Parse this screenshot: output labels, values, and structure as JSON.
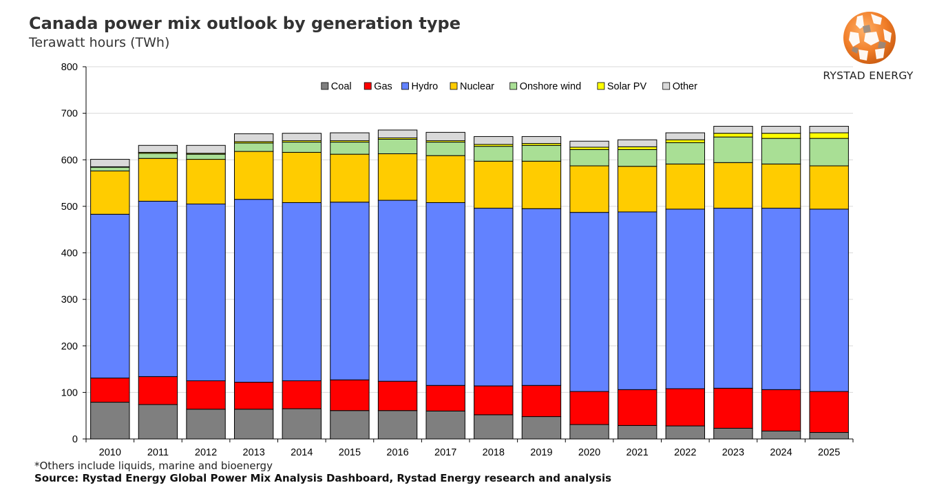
{
  "header": {
    "title": "Canada power mix outlook by generation type",
    "subtitle": "Terawatt hours (TWh)"
  },
  "logo": {
    "text": "RYSTAD ENERGY",
    "icon": "globe-logo-icon",
    "color": "#f07d28"
  },
  "footer": {
    "footnote": "*Others include liquids, marine and bioenergy",
    "source": "Source: Rystad Energy Global Power Mix Analysis  Dashboard, Rystad Energy research and analysis"
  },
  "chart_data": {
    "type": "bar",
    "stacked": true,
    "title": "Canada power mix outlook by generation type",
    "subtitle": "Terawatt hours (TWh)",
    "categories": [
      "2010",
      "2011",
      "2012",
      "2013",
      "2014",
      "2015",
      "2016",
      "2017",
      "2018",
      "2019",
      "2020",
      "2021",
      "2022",
      "2023",
      "2024",
      "2025"
    ],
    "ylim": [
      0,
      800
    ],
    "yticks": [
      0,
      100,
      200,
      300,
      400,
      500,
      600,
      700,
      800
    ],
    "grid": true,
    "legend": "top-center",
    "series": [
      {
        "name": "Coal",
        "color": "#7f7f7f",
        "values": [
          79,
          74,
          64,
          64,
          65,
          61,
          61,
          60,
          52,
          48,
          31,
          29,
          28,
          23,
          17,
          14
        ]
      },
      {
        "name": "Gas",
        "color": "#ff0000",
        "values": [
          52,
          60,
          61,
          58,
          60,
          66,
          63,
          55,
          62,
          67,
          71,
          77,
          80,
          86,
          89,
          88
        ]
      },
      {
        "name": "Hydro",
        "color": "#6282ff",
        "values": [
          352,
          377,
          380,
          393,
          383,
          382,
          389,
          393,
          382,
          380,
          385,
          382,
          386,
          387,
          390,
          392
        ]
      },
      {
        "name": "Nuclear",
        "color": "#ffcc00",
        "values": [
          93,
          92,
          96,
          103,
          108,
          103,
          100,
          101,
          101,
          102,
          100,
          98,
          97,
          98,
          95,
          93
        ]
      },
      {
        "name": "Onshore wind",
        "color": "#a9df95",
        "values": [
          8,
          11,
          11,
          18,
          22,
          26,
          31,
          29,
          32,
          34,
          35,
          36,
          46,
          55,
          55,
          59
        ]
      },
      {
        "name": "Solar PV",
        "color": "#ffff00",
        "values": [
          1,
          2,
          2,
          3,
          3,
          3,
          3,
          3,
          4,
          4,
          5,
          6,
          6,
          8,
          11,
          12
        ]
      },
      {
        "name": "Other",
        "color": "#d9d9d9",
        "values": [
          16,
          15,
          17,
          17,
          16,
          17,
          17,
          18,
          17,
          15,
          13,
          15,
          15,
          15,
          15,
          14
        ]
      }
    ]
  }
}
